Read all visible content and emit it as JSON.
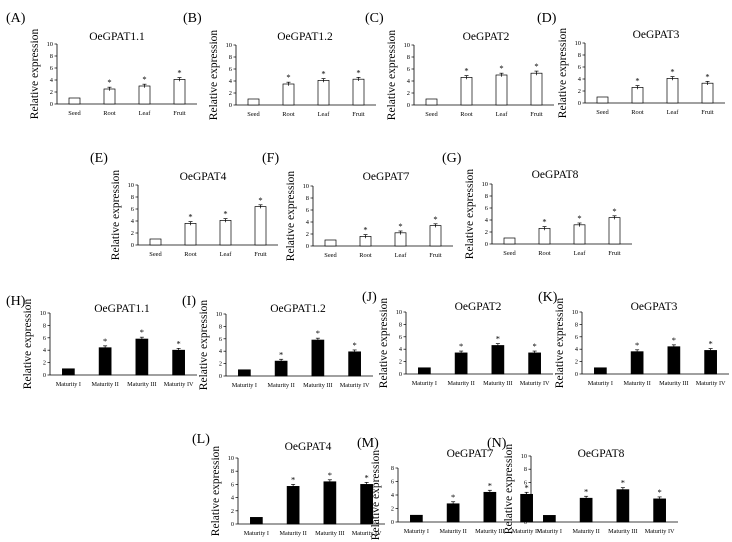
{
  "figure": {
    "ylabel": "Relative expression",
    "significance_marker": "*",
    "colors": {
      "open_bar_fill": "#ffffff",
      "solid_bar_fill": "#000000",
      "stroke": "#000000",
      "background": "#ffffff"
    }
  },
  "chart_data": [
    {
      "panel": "(A)",
      "title": "OeGPAT1.1",
      "type": "bar",
      "fill": "open",
      "categories": [
        "Seed",
        "Root",
        "Leaf",
        "Fruit"
      ],
      "values": [
        1.0,
        2.5,
        3.0,
        4.1
      ],
      "errors": [
        0.05,
        0.3,
        0.3,
        0.3
      ],
      "significant": [
        false,
        true,
        true,
        true
      ],
      "ylim": [
        0,
        10
      ],
      "yticks": [
        0,
        2,
        4,
        6,
        8,
        10
      ],
      "ylabel": "Relative expression"
    },
    {
      "panel": "(B)",
      "title": "OeGPAT1.2",
      "type": "bar",
      "fill": "open",
      "categories": [
        "Seed",
        "Root",
        "Leaf",
        "Fruit"
      ],
      "values": [
        1.0,
        3.5,
        4.1,
        4.3
      ],
      "errors": [
        0.05,
        0.3,
        0.3,
        0.3
      ],
      "significant": [
        false,
        true,
        true,
        true
      ],
      "ylim": [
        0,
        10
      ],
      "yticks": [
        0,
        2,
        4,
        6,
        8,
        10
      ],
      "ylabel": "Relative expression"
    },
    {
      "panel": "(C)",
      "title": "OeGPAT2",
      "type": "bar",
      "fill": "open",
      "categories": [
        "Seed",
        "Root",
        "Leaf",
        "Fruit"
      ],
      "values": [
        1.0,
        4.6,
        5.0,
        5.3
      ],
      "errors": [
        0.05,
        0.3,
        0.3,
        0.35
      ],
      "significant": [
        false,
        true,
        true,
        true
      ],
      "ylim": [
        0,
        10
      ],
      "yticks": [
        0,
        2,
        4,
        6,
        8,
        10
      ],
      "ylabel": "Relative expression"
    },
    {
      "panel": "(D)",
      "title": "OeGPAT3",
      "type": "bar",
      "fill": "open",
      "categories": [
        "Seed",
        "Root",
        "Leaf",
        "Fruit"
      ],
      "values": [
        1.0,
        2.6,
        4.1,
        3.3
      ],
      "errors": [
        0.05,
        0.3,
        0.3,
        0.3
      ],
      "significant": [
        false,
        true,
        true,
        true
      ],
      "ylim": [
        0,
        10
      ],
      "yticks": [
        0,
        2,
        4,
        6,
        8,
        10
      ],
      "ylabel": "Relative expression"
    },
    {
      "panel": "(E)",
      "title": "OeGPAT4",
      "type": "bar",
      "fill": "open",
      "categories": [
        "Seed",
        "Root",
        "Leaf",
        "Fruit"
      ],
      "values": [
        1.0,
        3.6,
        4.1,
        6.4
      ],
      "errors": [
        0.05,
        0.3,
        0.3,
        0.3
      ],
      "significant": [
        false,
        true,
        true,
        true
      ],
      "ylim": [
        0,
        10
      ],
      "yticks": [
        0,
        2,
        4,
        6,
        8,
        10
      ],
      "ylabel": "Relative expression"
    },
    {
      "panel": "(F)",
      "title": "OeGPAT7",
      "type": "bar",
      "fill": "open",
      "categories": [
        "Seed",
        "Root",
        "Leaf",
        "Fruit"
      ],
      "values": [
        1.0,
        1.6,
        2.2,
        3.4
      ],
      "errors": [
        0.05,
        0.3,
        0.3,
        0.3
      ],
      "significant": [
        false,
        true,
        true,
        true
      ],
      "ylim": [
        0,
        10
      ],
      "yticks": [
        0,
        2,
        4,
        6,
        8,
        10
      ],
      "ylabel": "Relative expression"
    },
    {
      "panel": "(G)",
      "title": "OeGPAT8",
      "type": "bar",
      "fill": "open",
      "categories": [
        "Seed",
        "Root",
        "Leaf",
        "Fruit"
      ],
      "values": [
        1.0,
        2.6,
        3.2,
        4.4
      ],
      "errors": [
        0.05,
        0.3,
        0.3,
        0.3
      ],
      "significant": [
        false,
        true,
        true,
        true
      ],
      "ylim": [
        0,
        10
      ],
      "yticks": [
        0,
        2,
        4,
        6,
        8,
        10
      ],
      "ylabel": "Relative expression"
    },
    {
      "panel": "(H)",
      "title": "OeGPAT1.1",
      "type": "bar",
      "fill": "solid",
      "categories": [
        "Maturity I",
        "Maturity II",
        "Maturity III",
        "Maturity IV"
      ],
      "values": [
        1.0,
        4.4,
        5.8,
        4.0
      ],
      "errors": [
        0.05,
        0.3,
        0.3,
        0.3
      ],
      "significant": [
        false,
        true,
        true,
        true
      ],
      "ylim": [
        0,
        10
      ],
      "yticks": [
        0,
        2,
        4,
        6,
        8,
        10
      ],
      "ylabel": "Relative expression"
    },
    {
      "panel": "(I)",
      "title": "OeGPAT1.2",
      "type": "bar",
      "fill": "solid",
      "categories": [
        "Maturity I",
        "Maturity II",
        "Maturity III",
        "Maturity IV"
      ],
      "values": [
        1.0,
        2.4,
        5.8,
        3.9
      ],
      "errors": [
        0.05,
        0.3,
        0.3,
        0.3
      ],
      "significant": [
        false,
        true,
        true,
        true
      ],
      "ylim": [
        0,
        10
      ],
      "yticks": [
        0,
        2,
        4,
        6,
        8,
        10
      ],
      "ylabel": "Relative expression"
    },
    {
      "panel": "(J)",
      "title": "OeGPAT2",
      "type": "bar",
      "fill": "solid",
      "categories": [
        "Maturity I",
        "Maturity II",
        "Maturity III",
        "Maturity IV"
      ],
      "values": [
        1.0,
        3.4,
        4.6,
        3.4
      ],
      "errors": [
        0.05,
        0.3,
        0.3,
        0.3
      ],
      "significant": [
        false,
        true,
        true,
        true
      ],
      "ylim": [
        0,
        10
      ],
      "yticks": [
        0,
        2,
        4,
        6,
        8,
        10
      ],
      "ylabel": "Relative expression"
    },
    {
      "panel": "(K)",
      "title": "OeGPAT3",
      "type": "bar",
      "fill": "solid",
      "categories": [
        "Maturity I",
        "Maturity II",
        "Maturity III",
        "Maturity IV"
      ],
      "values": [
        1.0,
        3.6,
        4.4,
        3.8
      ],
      "errors": [
        0.05,
        0.3,
        0.3,
        0.3
      ],
      "significant": [
        false,
        true,
        true,
        true
      ],
      "ylim": [
        0,
        10
      ],
      "yticks": [
        0,
        2,
        4,
        6,
        8,
        10
      ],
      "ylabel": "Relative expression"
    },
    {
      "panel": "(L)",
      "title": "OeGPAT4",
      "type": "bar",
      "fill": "solid",
      "categories": [
        "Maturity I",
        "Maturity II",
        "Maturity III",
        "Maturity IV"
      ],
      "values": [
        1.0,
        5.7,
        6.4,
        6.0
      ],
      "errors": [
        0.05,
        0.3,
        0.3,
        0.3
      ],
      "significant": [
        false,
        true,
        true,
        true
      ],
      "ylim": [
        0,
        10
      ],
      "yticks": [
        0,
        2,
        4,
        6,
        8,
        10
      ],
      "ylabel": "Relative expression"
    },
    {
      "panel": "(M)",
      "title": "OeGPAT7",
      "type": "bar",
      "fill": "solid",
      "categories": [
        "Maturity I",
        "Maturity II",
        "Maturity III",
        "Maturity IV"
      ],
      "values": [
        1.0,
        2.7,
        4.4,
        4.1
      ],
      "errors": [
        0.05,
        0.3,
        0.3,
        0.3
      ],
      "significant": [
        false,
        true,
        true,
        true
      ],
      "ylim": [
        0,
        8
      ],
      "yticks": [
        0,
        2,
        4,
        6,
        8
      ],
      "ylabel": "Relative expression"
    },
    {
      "panel": "(N)",
      "title": "OeGPAT8",
      "type": "bar",
      "fill": "solid",
      "categories": [
        "Maturity I",
        "Maturity II",
        "Maturity III",
        "Maturity IV"
      ],
      "values": [
        1.0,
        3.6,
        4.9,
        3.5
      ],
      "errors": [
        0.05,
        0.3,
        0.3,
        0.3
      ],
      "significant": [
        false,
        true,
        true,
        true
      ],
      "ylim": [
        0,
        10
      ],
      "yticks": [
        0,
        2,
        4,
        6,
        8,
        10
      ],
      "ylabel": "Relative expression"
    }
  ]
}
